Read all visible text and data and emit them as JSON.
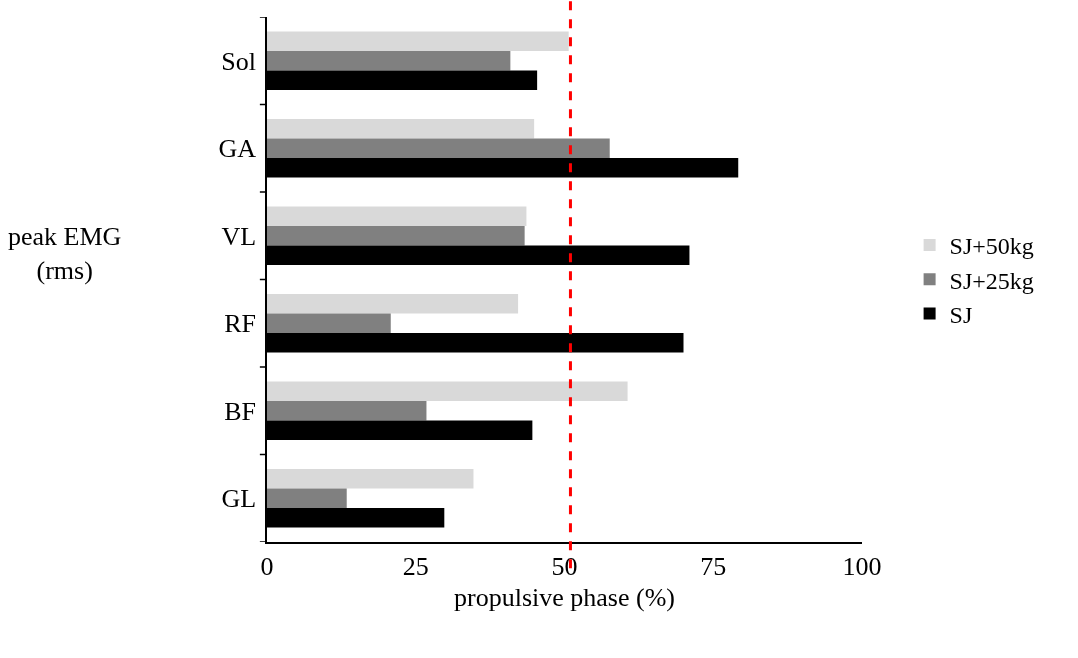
{
  "chart_data": {
    "type": "bar",
    "orientation": "horizontal",
    "xlabel": "propulsive phase (%)",
    "ylabel": "peak EMG (rms)",
    "categories": [
      "Sol",
      "GA",
      "VL",
      "RF",
      "BF",
      "GL"
    ],
    "series": [
      {
        "name": "SJ+50kg",
        "color": "#d9d9d9",
        "values": [
          50.7,
          44.9,
          43.6,
          42.2,
          60.6,
          34.7
        ]
      },
      {
        "name": "SJ+25kg",
        "color": "#808080",
        "values": [
          40.9,
          57.6,
          43.3,
          20.8,
          26.8,
          13.4
        ]
      },
      {
        "name": "SJ",
        "color": "#000000",
        "values": [
          45.4,
          79.2,
          71.0,
          70.0,
          44.6,
          29.8
        ]
      }
    ],
    "xlim": [
      0,
      100
    ],
    "xticks": [
      0,
      25,
      50,
      75,
      100
    ],
    "grid": false,
    "legend": "right",
    "ref_lines": [
      {
        "axis": "x",
        "value": 51,
        "color": "#ff0000",
        "line_style": "dashed"
      }
    ]
  }
}
